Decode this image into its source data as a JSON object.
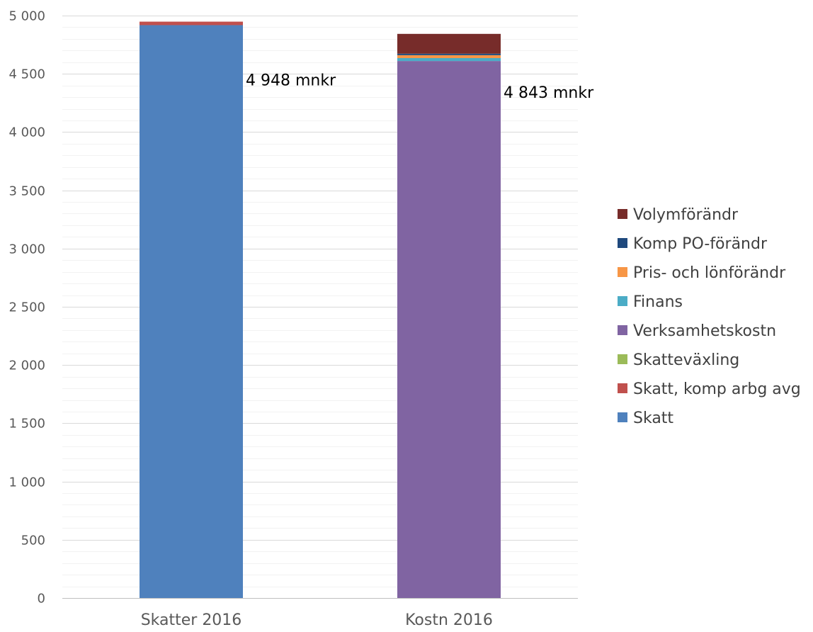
{
  "chart_data": {
    "type": "bar",
    "stacked": true,
    "categories": [
      "Skatter 2016",
      "Kostn 2016"
    ],
    "ylim": [
      0,
      5000
    ],
    "yticks": [
      0,
      500,
      1000,
      1500,
      2000,
      2500,
      3000,
      3500,
      4000,
      4500,
      5000
    ],
    "ytick_labels": [
      "0",
      "500",
      "1 000",
      "1 500",
      "2 000",
      "2 500",
      "3 000",
      "3 500",
      "4 000",
      "4 500",
      "5 000"
    ],
    "major_grid": true,
    "minor_grid_step": 100,
    "legend_position": "right",
    "series": [
      {
        "name": "Skatt",
        "color": "#4F81BD",
        "values": [
          4918,
          0
        ]
      },
      {
        "name": "Skatt, komp arbg avg",
        "color": "#C0504D",
        "values": [
          30,
          0
        ]
      },
      {
        "name": "Skatteväxling",
        "color": "#9BBB59",
        "values": [
          0,
          0
        ]
      },
      {
        "name": "Verksamhetskostn",
        "color": "#8064A2",
        "values": [
          0,
          4610
        ]
      },
      {
        "name": "Finans",
        "color": "#4BACC6",
        "values": [
          0,
          25
        ]
      },
      {
        "name": "Pris- och lönförändr",
        "color": "#F79646",
        "values": [
          0,
          25
        ]
      },
      {
        "name": "Komp PO-förändr",
        "color": "#1F497D",
        "values": [
          0,
          13
        ]
      },
      {
        "name": "Volymförändr",
        "color": "#772C2A",
        "values": [
          0,
          170
        ]
      }
    ],
    "totals": [
      4948,
      4843
    ],
    "total_labels": [
      "4 948 mnkr",
      "4 843 mnkr"
    ]
  }
}
